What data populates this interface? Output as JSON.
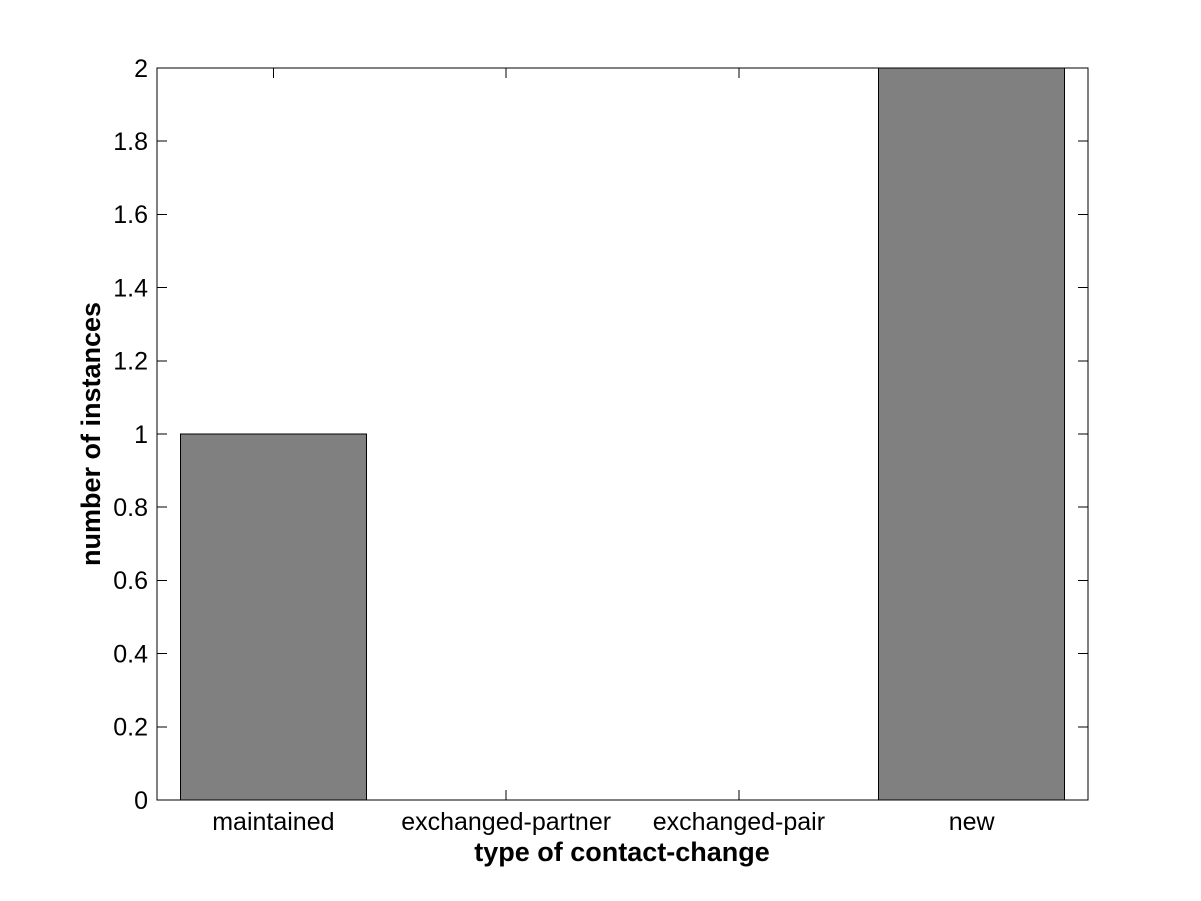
{
  "chart_data": {
    "type": "bar",
    "title": "",
    "xlabel": "type of contact-change",
    "ylabel": "number of instances",
    "categories": [
      "maintained",
      "exchanged-partner",
      "exchanged-pair",
      "new"
    ],
    "values": [
      1,
      0,
      0,
      2
    ],
    "ylim": [
      0,
      2
    ],
    "yticks": [
      {
        "value": 0,
        "label": "0"
      },
      {
        "value": 0.2,
        "label": "0.2"
      },
      {
        "value": 0.4,
        "label": "0.4"
      },
      {
        "value": 0.6,
        "label": "0.6"
      },
      {
        "value": 0.8,
        "label": "0.8"
      },
      {
        "value": 1,
        "label": "1"
      },
      {
        "value": 1.2,
        "label": "1.2"
      },
      {
        "value": 1.4,
        "label": "1.4"
      },
      {
        "value": 1.6,
        "label": "1.6"
      },
      {
        "value": 1.8,
        "label": "1.8"
      },
      {
        "value": 2,
        "label": "2"
      }
    ],
    "bar_width_fraction": 0.8,
    "grid": false,
    "legend": null,
    "colors": {
      "bar_fill": "#808080",
      "bar_edge": "#000000",
      "axis": "#000000",
      "background": "#ffffff"
    }
  }
}
